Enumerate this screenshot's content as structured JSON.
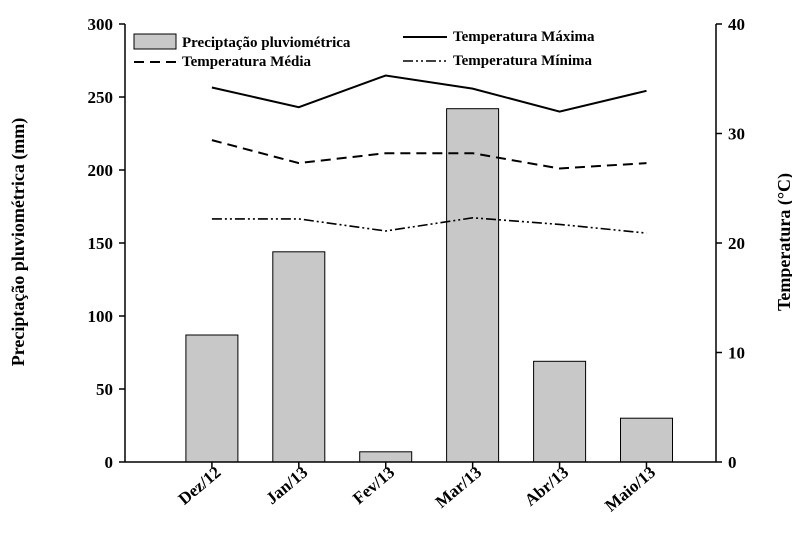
{
  "chart_data": {
    "type": "bar+line",
    "categories": [
      "Dez/12",
      "Jan/13",
      "Fev/13",
      "Mar/13",
      "Abr/13",
      "Maio/13"
    ],
    "bars": {
      "name": "Preciptação pluviométrica",
      "axis": "left",
      "values": [
        87,
        144,
        7,
        242,
        69,
        30
      ],
      "color": "#c8c8c8"
    },
    "lines": [
      {
        "name": "Temperatura Máxima",
        "axis": "right",
        "values": [
          34.2,
          32.4,
          35.3,
          34.1,
          32.0,
          33.9
        ],
        "dash": "solid"
      },
      {
        "name": "Temperatura Média",
        "axis": "right",
        "values": [
          29.4,
          27.3,
          28.2,
          28.2,
          26.8,
          27.3
        ],
        "dash": "dash"
      },
      {
        "name": "Temperatura Mínima",
        "axis": "right",
        "values": [
          22.2,
          22.2,
          21.1,
          22.3,
          21.7,
          20.9
        ],
        "dash": "dashdotdot"
      }
    ],
    "ylabel_left": "Preciptação pluviométrica (mm)",
    "ylabel_right": "Temperatura (°C)",
    "ylim_left": [
      0,
      300
    ],
    "yticks_left": [
      0,
      50,
      100,
      150,
      200,
      250,
      300
    ],
    "ylim_right": [
      0,
      40
    ],
    "yticks_right": [
      0,
      10,
      20,
      30,
      40
    ],
    "grid": false,
    "legend_position": "top"
  }
}
